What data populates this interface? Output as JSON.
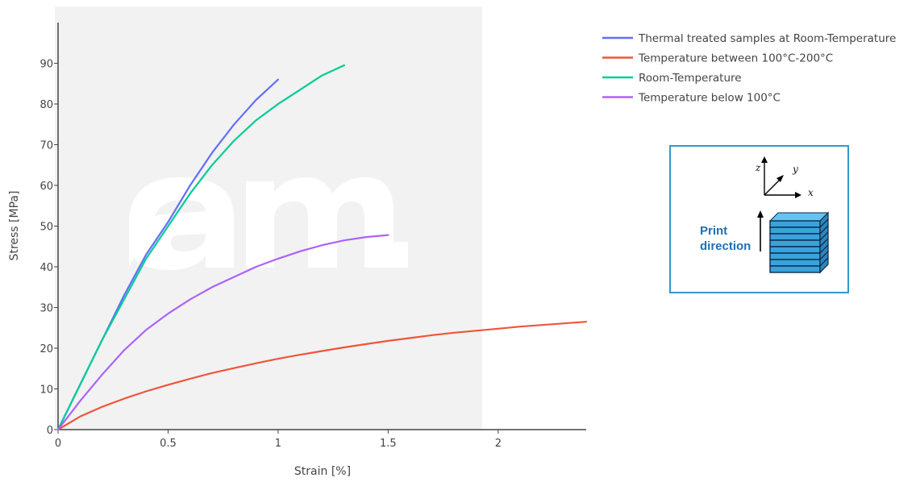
{
  "chart_data": {
    "type": "line",
    "title": "",
    "xlabel": "Strain [%]",
    "ylabel": "Stress [MPa]",
    "xlim": [
      0,
      2.4
    ],
    "ylim": [
      0,
      100
    ],
    "xticks": [
      0,
      0.5,
      1,
      1.5,
      2
    ],
    "xtick_labels": [
      "0",
      "0.5",
      "1",
      "1.5",
      "2"
    ],
    "yticks": [
      0,
      10,
      20,
      30,
      40,
      50,
      60,
      70,
      80,
      90
    ],
    "ytick_labels": [
      "0",
      "10",
      "20",
      "30",
      "40",
      "50",
      "60",
      "70",
      "80",
      "90"
    ],
    "grid": false,
    "legend_position": "top-right",
    "watermark": "am.",
    "series": [
      {
        "name": "Thermal treated samples at Room-Temperature",
        "color": "#636efa",
        "x": [
          0,
          0.1,
          0.2,
          0.3,
          0.4,
          0.5,
          0.6,
          0.7,
          0.8,
          0.9,
          1.0
        ],
        "y": [
          0,
          11,
          22,
          33,
          43,
          51,
          60,
          68,
          75,
          81,
          86
        ]
      },
      {
        "name": "Temperature between 100°C-200°C",
        "color": "#ef553b",
        "x": [
          0,
          0.1,
          0.2,
          0.3,
          0.4,
          0.5,
          0.6,
          0.7,
          0.8,
          0.9,
          1.0,
          1.1,
          1.2,
          1.3,
          1.4,
          1.5,
          1.6,
          1.7,
          1.8,
          1.9,
          2.0,
          2.1,
          2.2,
          2.3,
          2.4
        ],
        "y": [
          0,
          3.2,
          5.6,
          7.6,
          9.4,
          11.0,
          12.5,
          13.9,
          15.1,
          16.3,
          17.4,
          18.4,
          19.3,
          20.2,
          21.0,
          21.8,
          22.5,
          23.2,
          23.8,
          24.3,
          24.8,
          25.3,
          25.7,
          26.1,
          26.5
        ]
      },
      {
        "name": "Room-Temperature",
        "color": "#00cc96",
        "x": [
          0,
          0.1,
          0.2,
          0.3,
          0.4,
          0.5,
          0.6,
          0.7,
          0.8,
          0.9,
          1.0,
          1.1,
          1.2,
          1.3
        ],
        "y": [
          0,
          11,
          22,
          32,
          42,
          50,
          58,
          65,
          71,
          76,
          80,
          83.5,
          87,
          89.5
        ]
      },
      {
        "name": "Temperature below 100°C",
        "color": "#ab63fa",
        "x": [
          0,
          0.1,
          0.2,
          0.3,
          0.4,
          0.5,
          0.6,
          0.7,
          0.8,
          0.9,
          1.0,
          1.1,
          1.2,
          1.3,
          1.4,
          1.5
        ],
        "y": [
          0,
          7,
          13.5,
          19.5,
          24.5,
          28.5,
          32,
          35,
          37.5,
          40,
          42,
          43.8,
          45.3,
          46.5,
          47.3,
          47.8
        ]
      }
    ]
  },
  "inset": {
    "axes": {
      "z": "z",
      "y": "y",
      "x": "x"
    },
    "print_label_line1": "Print",
    "print_label_line2": "direction",
    "border_color": "#3399cc",
    "block_color": "#3aa3dd"
  }
}
